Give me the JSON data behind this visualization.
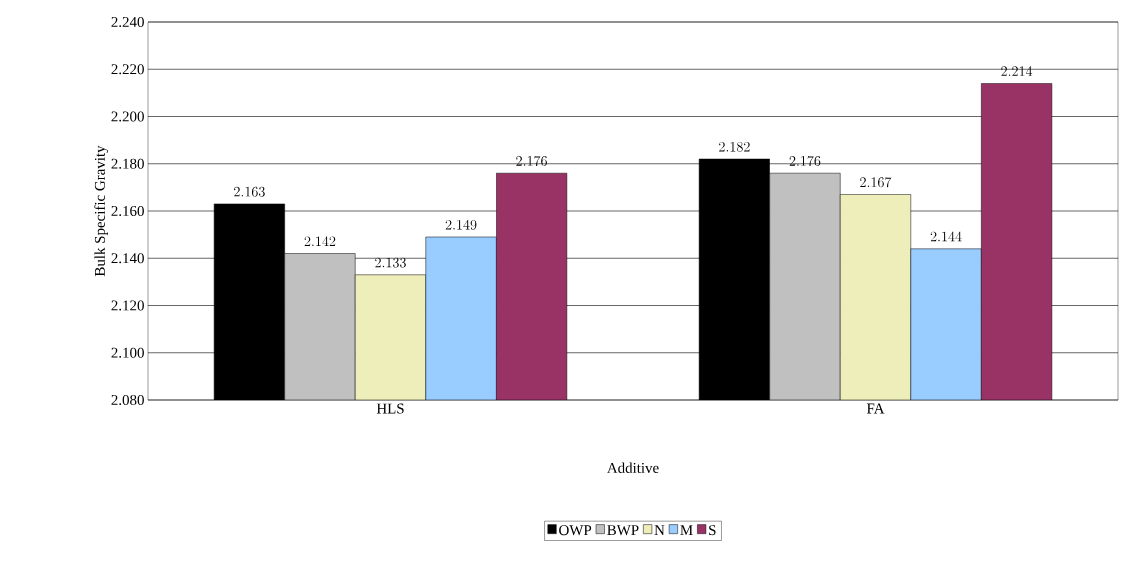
{
  "chart_data": {
    "type": "bar",
    "xlabel": "Additive",
    "ylabel": "Bulk Specific Gravity",
    "categories": [
      "HLS",
      "FA"
    ],
    "series": [
      {
        "name": "OWP",
        "color": "#000000",
        "values": [
          2.163,
          2.182
        ]
      },
      {
        "name": "BWP",
        "color": "#c0c0c0",
        "values": [
          2.142,
          2.176
        ]
      },
      {
        "name": "N",
        "color": "#eeeebb",
        "values": [
          2.133,
          2.167
        ]
      },
      {
        "name": "M",
        "color": "#99ccff",
        "values": [
          2.149,
          2.144
        ]
      },
      {
        "name": "S",
        "color": "#993366",
        "values": [
          2.176,
          2.214
        ]
      }
    ],
    "ylim": [
      2.08,
      2.24
    ],
    "yticks": [
      {
        "value": 2.08,
        "label": "2.080"
      },
      {
        "value": 2.1,
        "label": "2.100"
      },
      {
        "value": 2.12,
        "label": "2.120"
      },
      {
        "value": 2.14,
        "label": "2.140"
      },
      {
        "value": 2.16,
        "label": "2.160"
      },
      {
        "value": 2.18,
        "label": "2.180"
      },
      {
        "value": 2.2,
        "label": "2.200"
      },
      {
        "value": 2.22,
        "label": "2.220"
      },
      {
        "value": 2.24,
        "label": "2.240"
      }
    ],
    "grid": "y",
    "legend": "bottom",
    "data_labels": true
  }
}
